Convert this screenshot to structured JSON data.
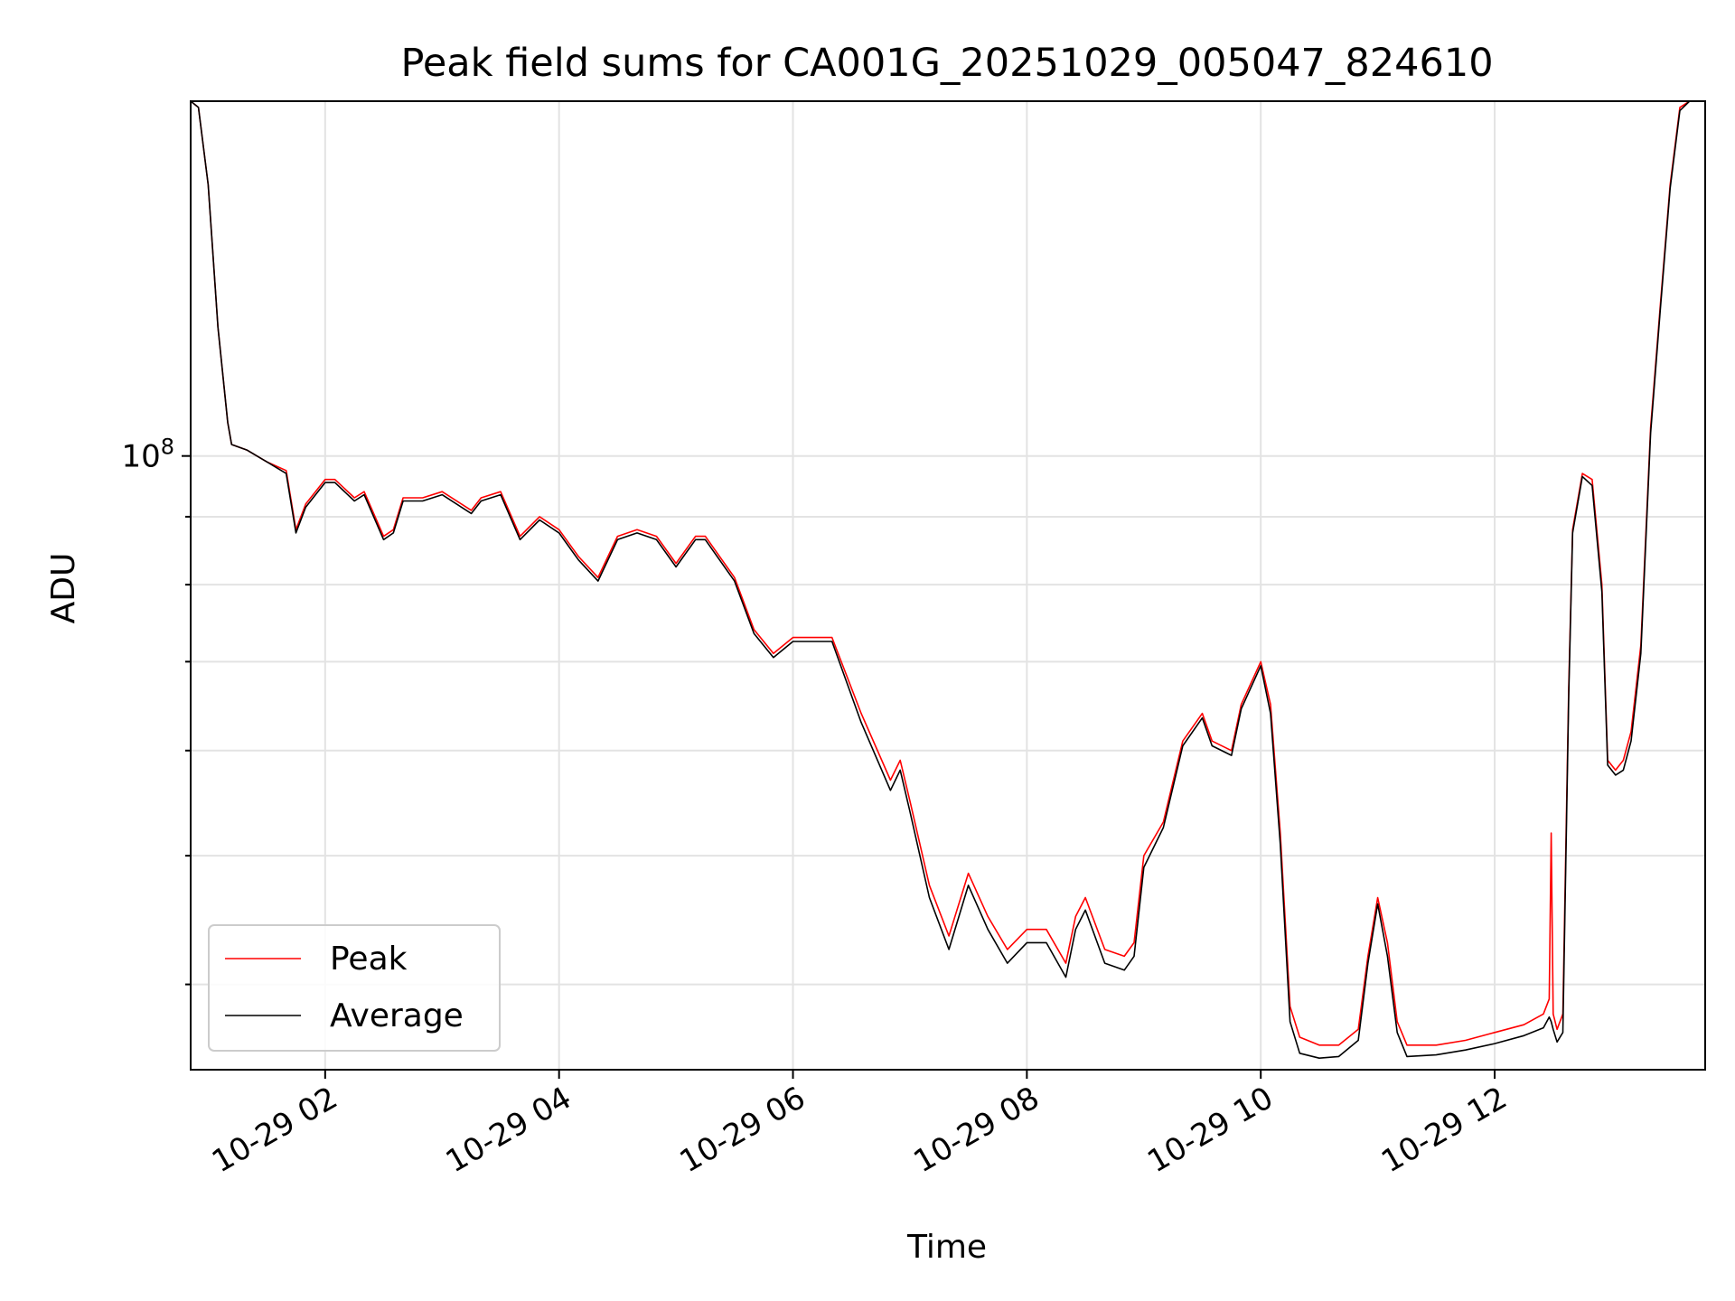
{
  "chart_data": {
    "type": "line",
    "title": "Peak field sums for CA001G_20251029_005047_824610",
    "xlabel": "Time",
    "ylabel": "ADU",
    "y_scale": "log",
    "y_tick_label": {
      "base": "10",
      "exp": "8"
    },
    "x_tick_labels": [
      "10-29 02",
      "10-29 04",
      "10-29 06",
      "10-29 08",
      "10-29 10",
      "10-29 12"
    ],
    "x_ticks": [
      "2025-10-29 02:00",
      "2025-10-29 04:00",
      "2025-10-29 06:00",
      "2025-10-29 08:00",
      "2025-10-29 10:00",
      "2025-10-29 12:00"
    ],
    "xlim": [
      "2025-10-29 00:51",
      "2025-10-29 13:48"
    ],
    "ylim": [
      34500000,
      185000000
    ],
    "grid": true,
    "legend_position": "lower-left",
    "series": [
      {
        "name": "Peak",
        "color": "#ff0000",
        "x": [
          "2025-10-29 00:51",
          "2025-10-29 00:55",
          "2025-10-29 01:00",
          "2025-10-29 01:05",
          "2025-10-29 01:10",
          "2025-10-29 01:12",
          "2025-10-29 01:20",
          "2025-10-29 01:30",
          "2025-10-29 01:40",
          "2025-10-29 01:45",
          "2025-10-29 01:50",
          "2025-10-29 02:00",
          "2025-10-29 02:05",
          "2025-10-29 02:15",
          "2025-10-29 02:20",
          "2025-10-29 02:30",
          "2025-10-29 02:35",
          "2025-10-29 02:40",
          "2025-10-29 02:50",
          "2025-10-29 03:00",
          "2025-10-29 03:15",
          "2025-10-29 03:20",
          "2025-10-29 03:30",
          "2025-10-29 03:40",
          "2025-10-29 03:50",
          "2025-10-29 04:00",
          "2025-10-29 04:10",
          "2025-10-29 04:20",
          "2025-10-29 04:30",
          "2025-10-29 04:40",
          "2025-10-29 04:50",
          "2025-10-29 05:00",
          "2025-10-29 05:10",
          "2025-10-29 05:15",
          "2025-10-29 05:30",
          "2025-10-29 05:40",
          "2025-10-29 05:50",
          "2025-10-29 06:00",
          "2025-10-29 06:10",
          "2025-10-29 06:20",
          "2025-10-29 06:35",
          "2025-10-29 06:50",
          "2025-10-29 06:55",
          "2025-10-29 07:00",
          "2025-10-29 07:10",
          "2025-10-29 07:20",
          "2025-10-29 07:30",
          "2025-10-29 07:40",
          "2025-10-29 07:50",
          "2025-10-29 08:00",
          "2025-10-29 08:10",
          "2025-10-29 08:20",
          "2025-10-29 08:25",
          "2025-10-29 08:30",
          "2025-10-29 08:40",
          "2025-10-29 08:50",
          "2025-10-29 08:55",
          "2025-10-29 09:00",
          "2025-10-29 09:10",
          "2025-10-29 09:20",
          "2025-10-29 09:30",
          "2025-10-29 09:35",
          "2025-10-29 09:45",
          "2025-10-29 09:50",
          "2025-10-29 10:00",
          "2025-10-29 10:05",
          "2025-10-29 10:10",
          "2025-10-29 10:15",
          "2025-10-29 10:20",
          "2025-10-29 10:30",
          "2025-10-29 10:40",
          "2025-10-29 10:50",
          "2025-10-29 10:55",
          "2025-10-29 11:00",
          "2025-10-29 11:05",
          "2025-10-29 11:10",
          "2025-10-29 11:15",
          "2025-10-29 11:30",
          "2025-10-29 11:45",
          "2025-10-29 12:00",
          "2025-10-29 12:15",
          "2025-10-29 12:25",
          "2025-10-29 12:28",
          "2025-10-29 12:29",
          "2025-10-29 12:30",
          "2025-10-29 12:32",
          "2025-10-29 12:35",
          "2025-10-29 12:38",
          "2025-10-29 12:40",
          "2025-10-29 12:45",
          "2025-10-29 12:50",
          "2025-10-29 12:55",
          "2025-10-29 12:58",
          "2025-10-29 13:02",
          "2025-10-29 13:06",
          "2025-10-29 13:10",
          "2025-10-29 13:15",
          "2025-10-29 13:20",
          "2025-10-29 13:25",
          "2025-10-29 13:30",
          "2025-10-29 13:35",
          "2025-10-29 13:40",
          "2025-10-29 13:48"
        ],
        "y": [
          185000000,
          183000000,
          160000000,
          125000000,
          106000000,
          102000000,
          101000000,
          99000000,
          97500000,
          88000000,
          92000000,
          96000000,
          96000000,
          93000000,
          94000000,
          87000000,
          88000000,
          93000000,
          93000000,
          94000000,
          91000000,
          93000000,
          94000000,
          87000000,
          90000000,
          88000000,
          84000000,
          81000000,
          87000000,
          88000000,
          87000000,
          83000000,
          87000000,
          87000000,
          81000000,
          74000000,
          71000000,
          73000000,
          73000000,
          73000000,
          64000000,
          57000000,
          59000000,
          55000000,
          47500000,
          43500000,
          48500000,
          45000000,
          42500000,
          44000000,
          44000000,
          41500000,
          45000000,
          46500000,
          42500000,
          42000000,
          43000000,
          50000000,
          53000000,
          61000000,
          64000000,
          61000000,
          60000000,
          65000000,
          70000000,
          65000000,
          52000000,
          38500000,
          36500000,
          36000000,
          36000000,
          37000000,
          42000000,
          46500000,
          43000000,
          37500000,
          36000000,
          36000000,
          36300000,
          36800000,
          37300000,
          38000000,
          39000000,
          52000000,
          38000000,
          37000000,
          38000000,
          67000000,
          88000000,
          97000000,
          96000000,
          80000000,
          59000000,
          58000000,
          59000000,
          62000000,
          72000000,
          105000000,
          130000000,
          160000000,
          183000000,
          185000000,
          185000000
        ]
      },
      {
        "name": "Average",
        "color": "#000000",
        "x": [
          "2025-10-29 00:51",
          "2025-10-29 00:55",
          "2025-10-29 01:00",
          "2025-10-29 01:05",
          "2025-10-29 01:10",
          "2025-10-29 01:12",
          "2025-10-29 01:20",
          "2025-10-29 01:30",
          "2025-10-29 01:40",
          "2025-10-29 01:45",
          "2025-10-29 01:50",
          "2025-10-29 02:00",
          "2025-10-29 02:05",
          "2025-10-29 02:15",
          "2025-10-29 02:20",
          "2025-10-29 02:30",
          "2025-10-29 02:35",
          "2025-10-29 02:40",
          "2025-10-29 02:50",
          "2025-10-29 03:00",
          "2025-10-29 03:15",
          "2025-10-29 03:20",
          "2025-10-29 03:30",
          "2025-10-29 03:40",
          "2025-10-29 03:50",
          "2025-10-29 04:00",
          "2025-10-29 04:10",
          "2025-10-29 04:20",
          "2025-10-29 04:30",
          "2025-10-29 04:40",
          "2025-10-29 04:50",
          "2025-10-29 05:00",
          "2025-10-29 05:10",
          "2025-10-29 05:15",
          "2025-10-29 05:30",
          "2025-10-29 05:40",
          "2025-10-29 05:50",
          "2025-10-29 06:00",
          "2025-10-29 06:10",
          "2025-10-29 06:20",
          "2025-10-29 06:35",
          "2025-10-29 06:50",
          "2025-10-29 06:55",
          "2025-10-29 07:00",
          "2025-10-29 07:10",
          "2025-10-29 07:20",
          "2025-10-29 07:30",
          "2025-10-29 07:40",
          "2025-10-29 07:50",
          "2025-10-29 08:00",
          "2025-10-29 08:10",
          "2025-10-29 08:20",
          "2025-10-29 08:25",
          "2025-10-29 08:30",
          "2025-10-29 08:40",
          "2025-10-29 08:50",
          "2025-10-29 08:55",
          "2025-10-29 09:00",
          "2025-10-29 09:10",
          "2025-10-29 09:20",
          "2025-10-29 09:30",
          "2025-10-29 09:35",
          "2025-10-29 09:45",
          "2025-10-29 09:50",
          "2025-10-29 10:00",
          "2025-10-29 10:05",
          "2025-10-29 10:10",
          "2025-10-29 10:15",
          "2025-10-29 10:20",
          "2025-10-29 10:30",
          "2025-10-29 10:40",
          "2025-10-29 10:50",
          "2025-10-29 10:55",
          "2025-10-29 11:00",
          "2025-10-29 11:05",
          "2025-10-29 11:10",
          "2025-10-29 11:15",
          "2025-10-29 11:30",
          "2025-10-29 11:45",
          "2025-10-29 12:00",
          "2025-10-29 12:15",
          "2025-10-29 12:25",
          "2025-10-29 12:28",
          "2025-10-29 12:29",
          "2025-10-29 12:30",
          "2025-10-29 12:32",
          "2025-10-29 12:35",
          "2025-10-29 12:38",
          "2025-10-29 12:40",
          "2025-10-29 12:45",
          "2025-10-29 12:50",
          "2025-10-29 12:55",
          "2025-10-29 12:58",
          "2025-10-29 13:02",
          "2025-10-29 13:06",
          "2025-10-29 13:10",
          "2025-10-29 13:15",
          "2025-10-29 13:20",
          "2025-10-29 13:25",
          "2025-10-29 13:30",
          "2025-10-29 13:35",
          "2025-10-29 13:40",
          "2025-10-29 13:48"
        ],
        "y": [
          185000000,
          183000000,
          160000000,
          125000000,
          106000000,
          102000000,
          101000000,
          99000000,
          97000000,
          87500000,
          91500000,
          95500000,
          95500000,
          92500000,
          93500000,
          86500000,
          87500000,
          92500000,
          92500000,
          93500000,
          90500000,
          92500000,
          93500000,
          86500000,
          89500000,
          87500000,
          83500000,
          80500000,
          86500000,
          87500000,
          86500000,
          82500000,
          86500000,
          86500000,
          80500000,
          73500000,
          70500000,
          72500000,
          72500000,
          72500000,
          63000000,
          56000000,
          58000000,
          54000000,
          46500000,
          42500000,
          47500000,
          44000000,
          41500000,
          43000000,
          43000000,
          40500000,
          44000000,
          45500000,
          41500000,
          41000000,
          42000000,
          49000000,
          52500000,
          60500000,
          63500000,
          60500000,
          59500000,
          64500000,
          69500000,
          64000000,
          51000000,
          37500000,
          35500000,
          35200000,
          35300000,
          36300000,
          41500000,
          46000000,
          42000000,
          36800000,
          35300000,
          35400000,
          35700000,
          36100000,
          36600000,
          37100000,
          37800000,
          37500000,
          37000000,
          36200000,
          36800000,
          66000000,
          87500000,
          96500000,
          95000000,
          79000000,
          58500000,
          57500000,
          58000000,
          61000000,
          71000000,
          104000000,
          129000000,
          159000000,
          182000000,
          185000000,
          185000000
        ]
      }
    ]
  }
}
